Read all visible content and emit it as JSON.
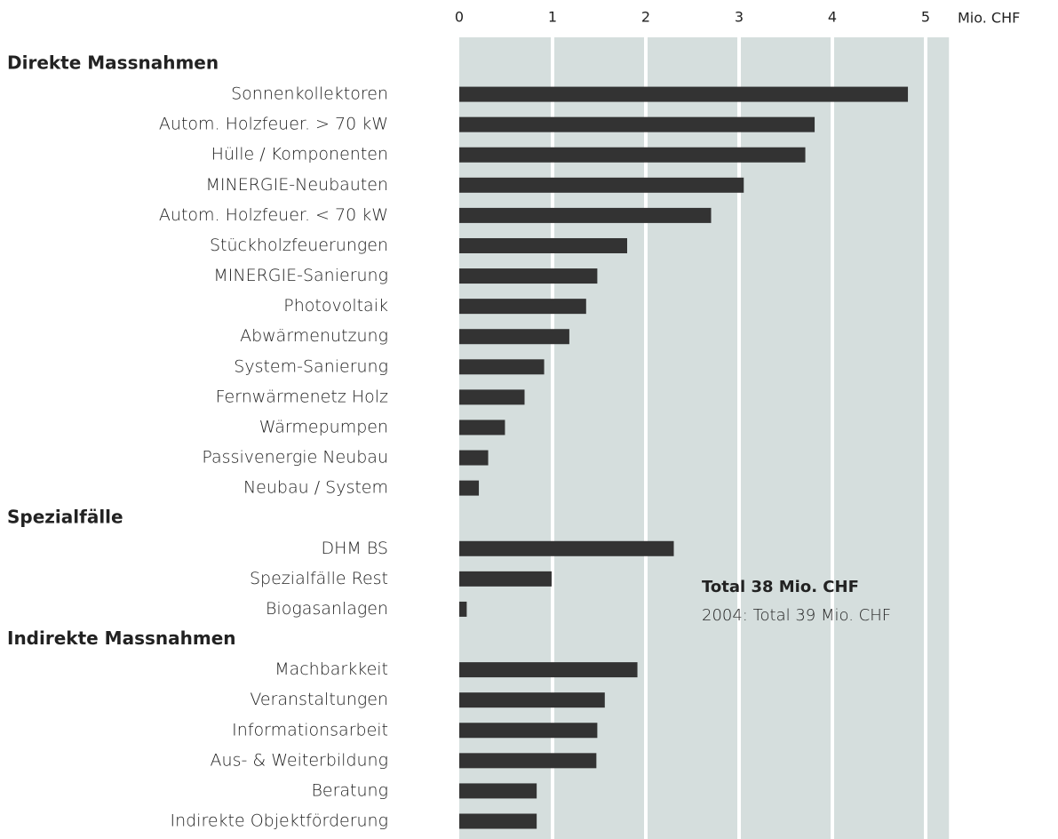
{
  "chart_data": {
    "type": "bar",
    "orientation": "horizontal",
    "x_label": "Mio. CHF",
    "xlim": [
      0,
      5.25
    ],
    "xticks": [
      0,
      1,
      2,
      3,
      4,
      5
    ],
    "grid": true,
    "color": "#333333",
    "background": "#d5dedd",
    "groups": [
      {
        "name": "Direkte Massnahmen",
        "categories": [
          "Sonnenkollektoren",
          "Autom. Holzfeuer. > 70 kW",
          "Hülle / Komponenten",
          "MINERGIE-Neubauten",
          "Autom. Holzfeuer. < 70 kW",
          "Stückholzfeuerungen",
          "MINERGIE-Sanierung",
          "Photovoltaik",
          "Abwärmenutzung",
          "System-Sanierung",
          "Fernwärmenetz Holz",
          "Wärmepumpen",
          "Passivenergie Neubau",
          "Neubau / System"
        ],
        "values": [
          4.81,
          3.81,
          3.71,
          3.05,
          2.7,
          1.8,
          1.48,
          1.36,
          1.18,
          0.91,
          0.7,
          0.49,
          0.31,
          0.21
        ]
      },
      {
        "name": "Spezialfälle",
        "categories": [
          "DHM BS",
          "Spezialfälle Rest",
          "Biogasanlagen"
        ],
        "values": [
          2.3,
          0.99,
          0.08
        ]
      },
      {
        "name": "Indirekte Massnahmen",
        "categories": [
          "Machbarkkeit",
          "Veranstaltungen",
          "Informationsarbeit",
          "Aus- & Weiterbildung",
          "Beratung",
          "Indirekte Objektförderung"
        ],
        "values": [
          1.91,
          1.56,
          1.48,
          1.47,
          0.83,
          0.83
        ]
      }
    ],
    "annotations": [
      "Total 38 Mio. CHF",
      "2004: Total 39 Mio. CHF"
    ]
  }
}
